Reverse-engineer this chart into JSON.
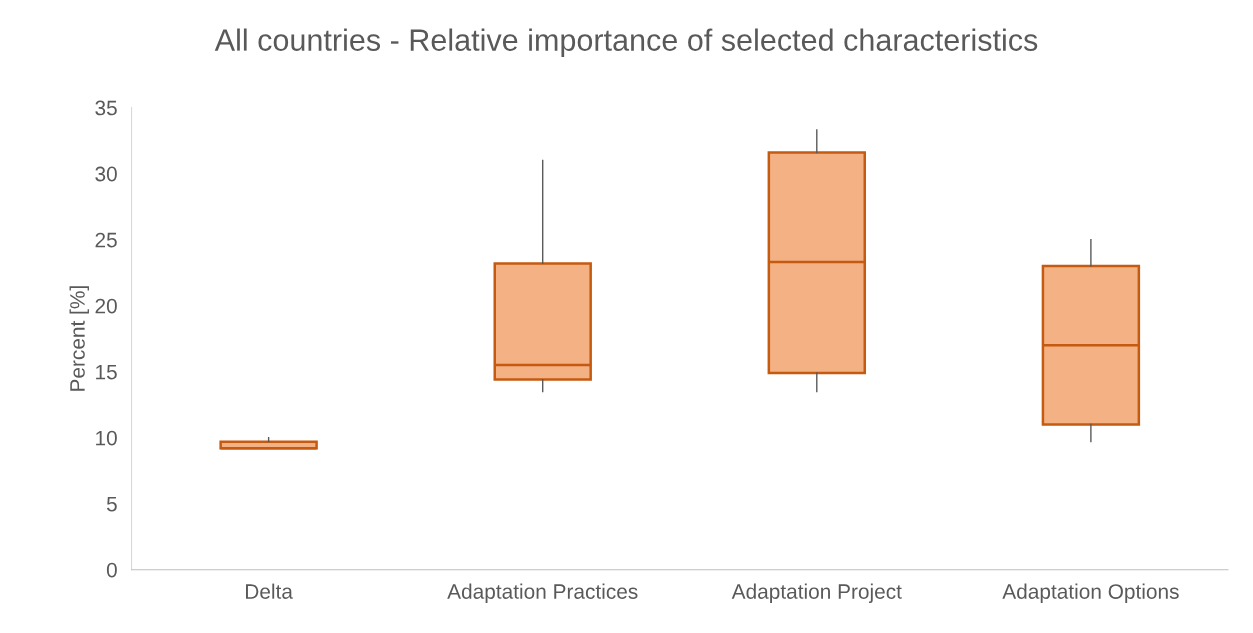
{
  "chart_data": {
    "type": "box",
    "title": "All countries - Relative importance of selected characteristics",
    "ylabel": "Percent [%]",
    "categories": [
      "Delta",
      "Adaptation Practices",
      "Adaptation Project",
      "Adaptation Options"
    ],
    "boxes": [
      {
        "low": 9.2,
        "q1": 9.2,
        "median": 9.2,
        "q3": 9.7,
        "high": 10.0
      },
      {
        "low": 13.5,
        "q1": 14.4,
        "median": 15.5,
        "q3": 23.2,
        "high": 31.0
      },
      {
        "low": 13.5,
        "q1": 14.9,
        "median": 23.3,
        "q3": 31.6,
        "high": 33.3
      },
      {
        "low": 9.7,
        "q1": 11.0,
        "median": 17.0,
        "q3": 23.0,
        "high": 25.0
      }
    ],
    "color": "#f4b183",
    "ylim": [
      0,
      35
    ],
    "yticks": [
      0,
      5,
      10,
      15,
      20,
      25,
      30,
      35
    ],
    "grid": false,
    "legend": false
  }
}
